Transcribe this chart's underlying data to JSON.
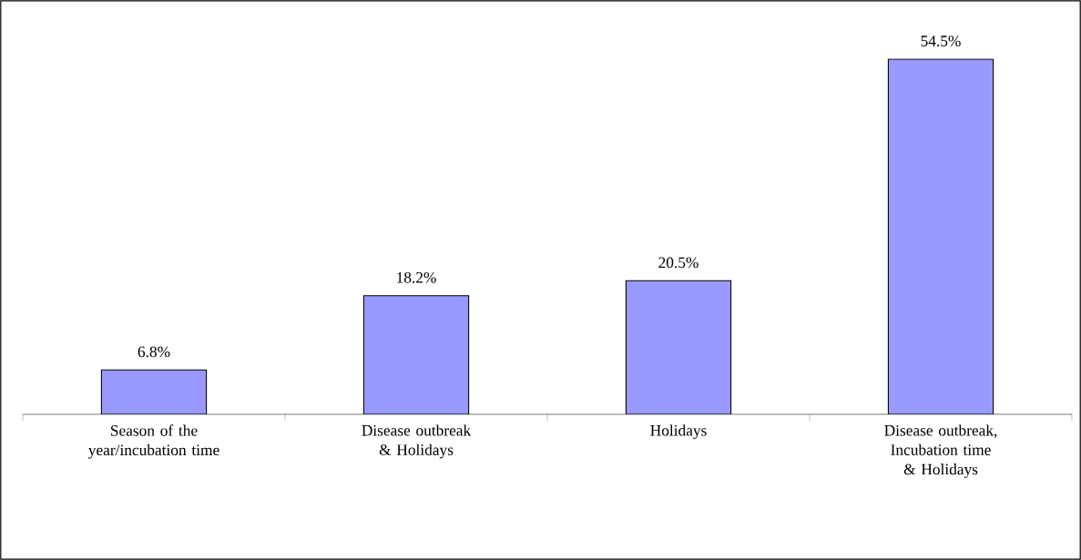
{
  "chart_data": {
    "type": "bar",
    "categories": [
      "Season of the year/incubation time",
      "Disease outbreak & Holidays",
      "Holidays",
      "Disease outbreak, Incubation time & Holidays"
    ],
    "values": [
      6.8,
      18.2,
      20.5,
      54.5
    ],
    "value_labels": [
      "6.8%",
      "18.2%",
      "20.5%",
      "54.5%"
    ],
    "color": "#9999ff"
  }
}
